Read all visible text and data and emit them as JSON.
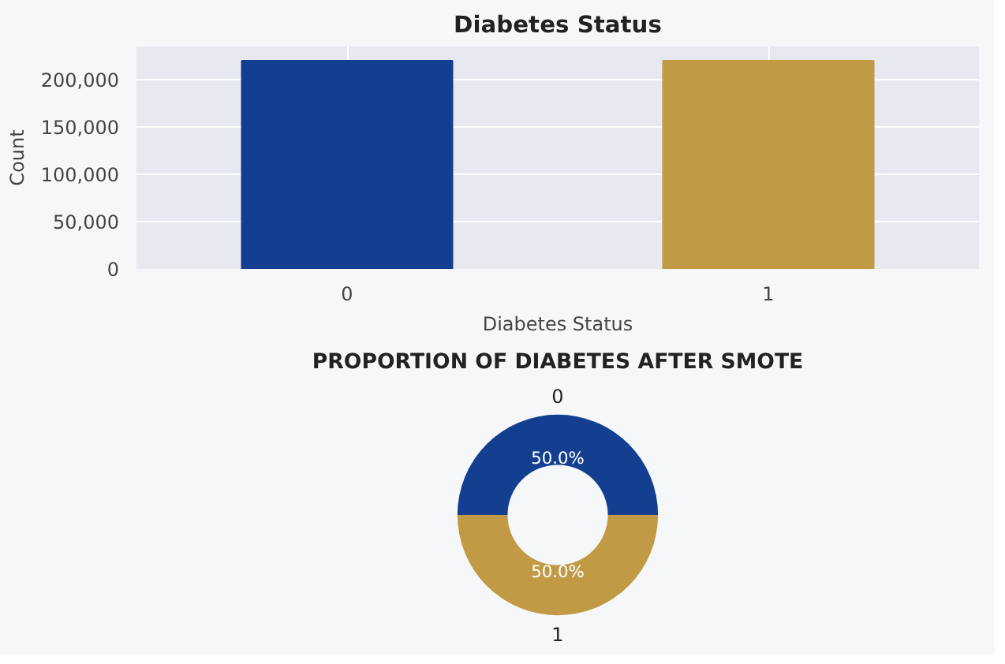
{
  "chart_data": [
    {
      "type": "bar",
      "title": "Diabetes Status",
      "xlabel": "Diabetes Status",
      "ylabel": "Count",
      "categories": [
        "0",
        "1"
      ],
      "values": [
        220000,
        220000
      ],
      "colors": [
        "#143f91",
        "#c09a45"
      ],
      "ylim": [
        0,
        235000
      ],
      "yticks": [
        {
          "value": 0,
          "label": "0"
        },
        {
          "value": 50000,
          "label": "50,000"
        },
        {
          "value": 100000,
          "label": "100,000"
        },
        {
          "value": 150000,
          "label": "150,000"
        },
        {
          "value": 200000,
          "label": "200,000"
        }
      ],
      "grid": true
    },
    {
      "type": "donut",
      "title": "PROPORTION OF DIABETES AFTER SMOTE",
      "categories": [
        "0",
        "1"
      ],
      "values": [
        50,
        50
      ],
      "colors": [
        "#143f91",
        "#c09a45"
      ],
      "value_labels": [
        "50.0%",
        "50.0%"
      ]
    }
  ]
}
